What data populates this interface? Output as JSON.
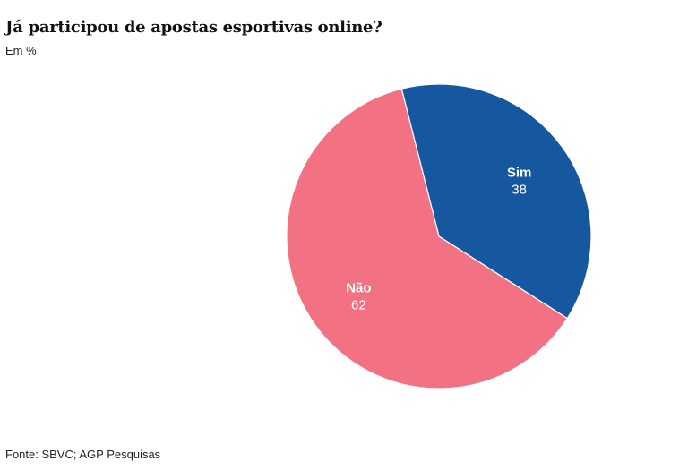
{
  "chart_data": {
    "type": "pie",
    "title": "Já participou de apostas esportivas online?",
    "subtitle": "Em %",
    "source": "Fonte: SBVC; AGP Pesquisas",
    "slices": [
      {
        "label": "Sim",
        "value": 38,
        "color": "#16589f"
      },
      {
        "label": "Não",
        "value": 62,
        "color": "#f27183"
      }
    ]
  }
}
